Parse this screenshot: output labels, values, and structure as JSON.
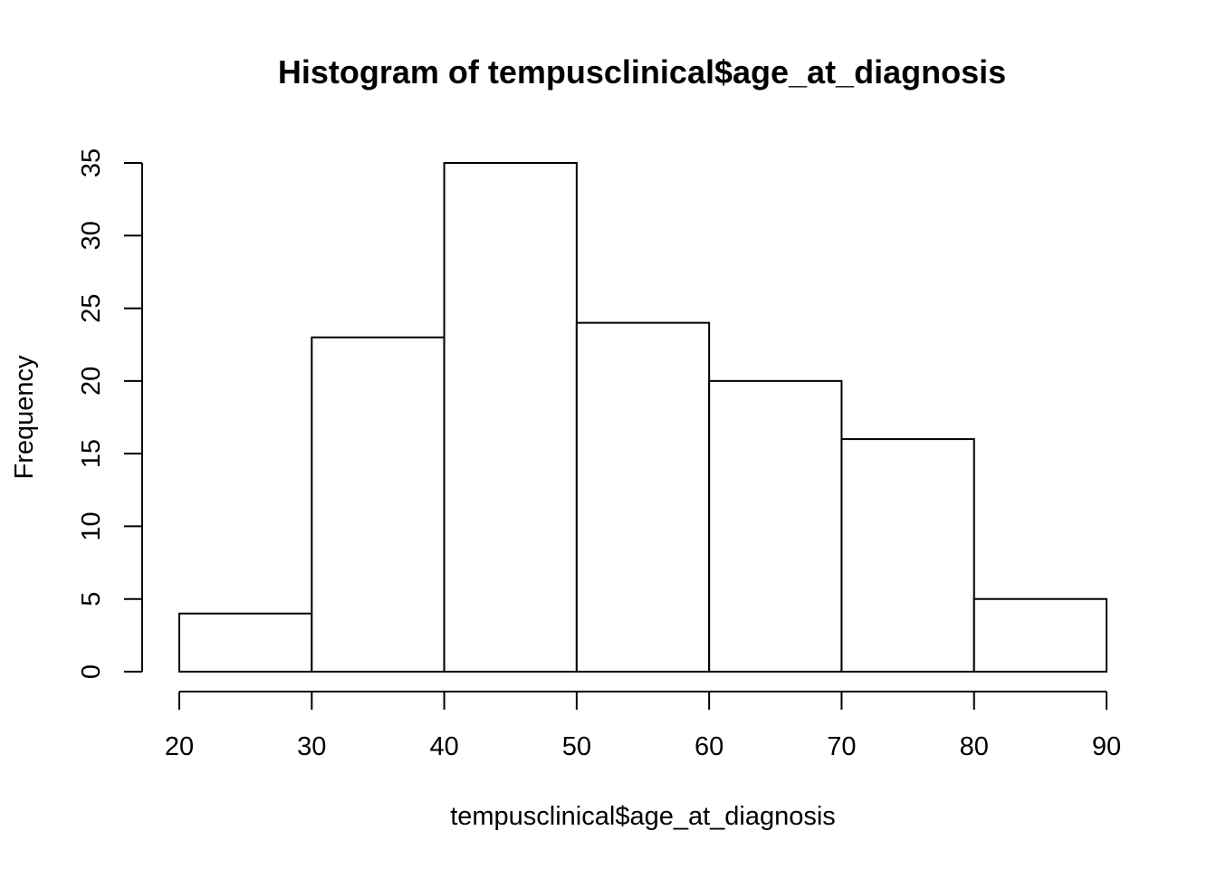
{
  "chart_data": {
    "type": "bar",
    "title": "Histogram of tempusclinical$age_at_diagnosis",
    "xlabel": "tempusclinical$age_at_diagnosis",
    "ylabel": "Frequency",
    "bins": [
      {
        "start": 20,
        "end": 30,
        "count": 4
      },
      {
        "start": 30,
        "end": 40,
        "count": 23
      },
      {
        "start": 40,
        "end": 50,
        "count": 35
      },
      {
        "start": 50,
        "end": 60,
        "count": 24
      },
      {
        "start": 60,
        "end": 70,
        "count": 20
      },
      {
        "start": 70,
        "end": 80,
        "count": 16
      },
      {
        "start": 80,
        "end": 90,
        "count": 5
      }
    ],
    "xlim": [
      20,
      90
    ],
    "ylim": [
      0,
      35
    ],
    "x_ticks": [
      "20",
      "30",
      "40",
      "50",
      "60",
      "70",
      "80",
      "90"
    ],
    "y_ticks": [
      "0",
      "5",
      "10",
      "15",
      "20",
      "25",
      "30",
      "35"
    ],
    "grid": false,
    "colors": {
      "bar_fill": "#ffffff",
      "bar_stroke": "#000000"
    }
  }
}
